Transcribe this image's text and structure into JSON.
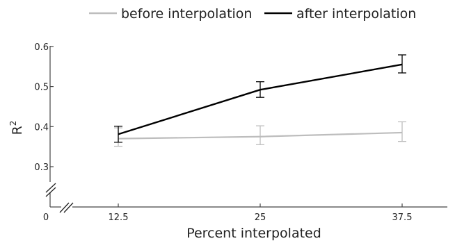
{
  "chart_data": {
    "type": "line",
    "x": [
      12.5,
      25,
      37.5
    ],
    "x_tick_labels": [
      "12.5",
      "25",
      "37.5"
    ],
    "origin_label": "0",
    "xlabel": "Percent interpolated",
    "ylabel": "R",
    "ylabel_superscript": "2",
    "y_ticks": [
      0.3,
      0.4,
      0.5,
      0.6
    ],
    "y_tick_labels": [
      "0.3",
      "0.4",
      "0.5",
      "0.6"
    ],
    "ylim": [
      0.3,
      0.6
    ],
    "axis_break": true,
    "grid": false,
    "legend_position": "top",
    "series": [
      {
        "name": "before interpolation",
        "color": "#bdbdbd",
        "values": [
          0.37,
          0.375,
          0.385
        ],
        "err_low": [
          0.351,
          0.355,
          0.363
        ],
        "err_high": [
          0.397,
          0.402,
          0.412
        ]
      },
      {
        "name": "after interpolation",
        "color": "#000000",
        "values": [
          0.381,
          0.492,
          0.555
        ],
        "err_low": [
          0.361,
          0.473,
          0.534
        ],
        "err_high": [
          0.401,
          0.512,
          0.579
        ]
      }
    ]
  }
}
